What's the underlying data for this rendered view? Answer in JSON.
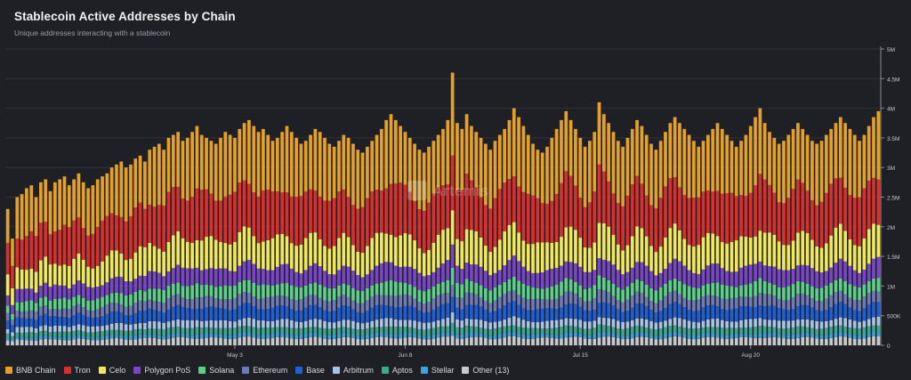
{
  "header": {
    "title": "Stablecoin Active Addresses by Chain",
    "subtitle": "Unique addresses interacting with a stablecoin"
  },
  "watermark": "Artemis",
  "chart_data": {
    "type": "bar",
    "stacked": true,
    "title": "Stablecoin Active Addresses by Chain",
    "subtitle": "Unique addresses interacting with a stablecoin",
    "ylim": [
      0,
      5000000
    ],
    "y_ticks": [
      {
        "value": 0,
        "label": "0"
      },
      {
        "value": 500000,
        "label": "500K"
      },
      {
        "value": 1000000,
        "label": "1M"
      },
      {
        "value": 1500000,
        "label": "1.5M"
      },
      {
        "value": 2000000,
        "label": "2M"
      },
      {
        "value": 2500000,
        "label": "2.5M"
      },
      {
        "value": 3000000,
        "label": "3M"
      },
      {
        "value": 3500000,
        "label": "3.5M"
      },
      {
        "value": 4000000,
        "label": "4M"
      },
      {
        "value": 4500000,
        "label": "4.5M"
      },
      {
        "value": 5000000,
        "label": "5M"
      }
    ],
    "x_ticks": [
      {
        "index": 48,
        "label": "May 3"
      },
      {
        "index": 84,
        "label": "Jun 8"
      },
      {
        "index": 121,
        "label": "Jul 15"
      },
      {
        "index": 157,
        "label": "Aug 20"
      }
    ],
    "grid": true,
    "legend_position": "bottom",
    "totals_values": [
      2300000,
      1800000,
      2500000,
      2550000,
      2650000,
      2700000,
      2500000,
      2750000,
      2800000,
      2600000,
      2750000,
      2800000,
      2850000,
      2700000,
      2800000,
      2900000,
      2750000,
      2650000,
      2700000,
      2800000,
      2850000,
      2900000,
      3000000,
      3050000,
      3100000,
      3000000,
      3050000,
      3150000,
      3200000,
      3100000,
      3300000,
      3350000,
      3400000,
      3300000,
      3500000,
      3550000,
      3600000,
      3450000,
      3500000,
      3600000,
      3700000,
      3550000,
      3500000,
      3450000,
      3400000,
      3500000,
      3600000,
      3550000,
      3500000,
      3650000,
      3750000,
      3800000,
      3700000,
      3600000,
      3650000,
      3550000,
      3450000,
      3500000,
      3600000,
      3700000,
      3600000,
      3500000,
      3400000,
      3450000,
      3550000,
      3650000,
      3600000,
      3500000,
      3400000,
      3350000,
      3450000,
      3550000,
      3500000,
      3400000,
      3300000,
      3250000,
      3350000,
      3450000,
      3550000,
      3650000,
      3800000,
      3900000,
      3800000,
      3700000,
      3600000,
      3500000,
      3400000,
      3300000,
      3250000,
      3350000,
      3450000,
      3550000,
      3650000,
      3800000,
      4600000,
      3750000,
      3650000,
      3900000,
      3700000,
      3600000,
      3500000,
      3400000,
      3300000,
      3450000,
      3550000,
      3650000,
      3800000,
      4000000,
      3850000,
      3700000,
      3550000,
      3400000,
      3300000,
      3250000,
      3350000,
      3500000,
      3650000,
      3800000,
      3950000,
      3800000,
      3650000,
      3500000,
      3350000,
      3450000,
      3600000,
      4100000,
      3900000,
      3750000,
      3600000,
      3450000,
      3350000,
      3500000,
      3650000,
      3800000,
      3700000,
      3550000,
      3400000,
      3300000,
      3450000,
      3600000,
      3750000,
      3850000,
      3750000,
      3650000,
      3550000,
      3450000,
      3350000,
      3450000,
      3550000,
      3650000,
      3750000,
      3650000,
      3550000,
      3450000,
      3350000,
      3450000,
      3550000,
      3700000,
      3850000,
      4000000,
      3750000,
      3600000,
      3500000,
      3400000,
      3450000,
      3550000,
      3650000,
      3750000,
      3650000,
      3550000,
      3450000,
      3400000,
      3450000,
      3550000,
      3650000,
      3750000,
      3850000,
      3750000,
      3650000,
      3550000,
      3450000,
      3550000,
      3700000,
      3850000,
      3950000
    ],
    "series": [
      {
        "name": "BNB Chain",
        "color": "#e3a02b",
        "share": 0.28
      },
      {
        "name": "Tron",
        "color": "#d8302c",
        "share": 0.22
      },
      {
        "name": "Celo",
        "color": "#f0e85a",
        "share": 0.14
      },
      {
        "name": "Polygon PoS",
        "color": "#7a46c8",
        "share": 0.08
      },
      {
        "name": "Solana",
        "color": "#5bd08a",
        "share": 0.06
      },
      {
        "name": "Ethereum",
        "color": "#6f7ab8",
        "share": 0.05
      },
      {
        "name": "Base",
        "color": "#1d5fd6",
        "share": 0.06
      },
      {
        "name": "Arbitrum",
        "color": "#a8c3e6",
        "share": 0.035
      },
      {
        "name": "Aptos",
        "color": "#3aa88c",
        "share": 0.03
      },
      {
        "name": "Stellar",
        "color": "#3ba3d8",
        "share": 0.02
      },
      {
        "name": "Other (13)",
        "color": "#c9c9cc",
        "share": 0.035
      }
    ]
  }
}
